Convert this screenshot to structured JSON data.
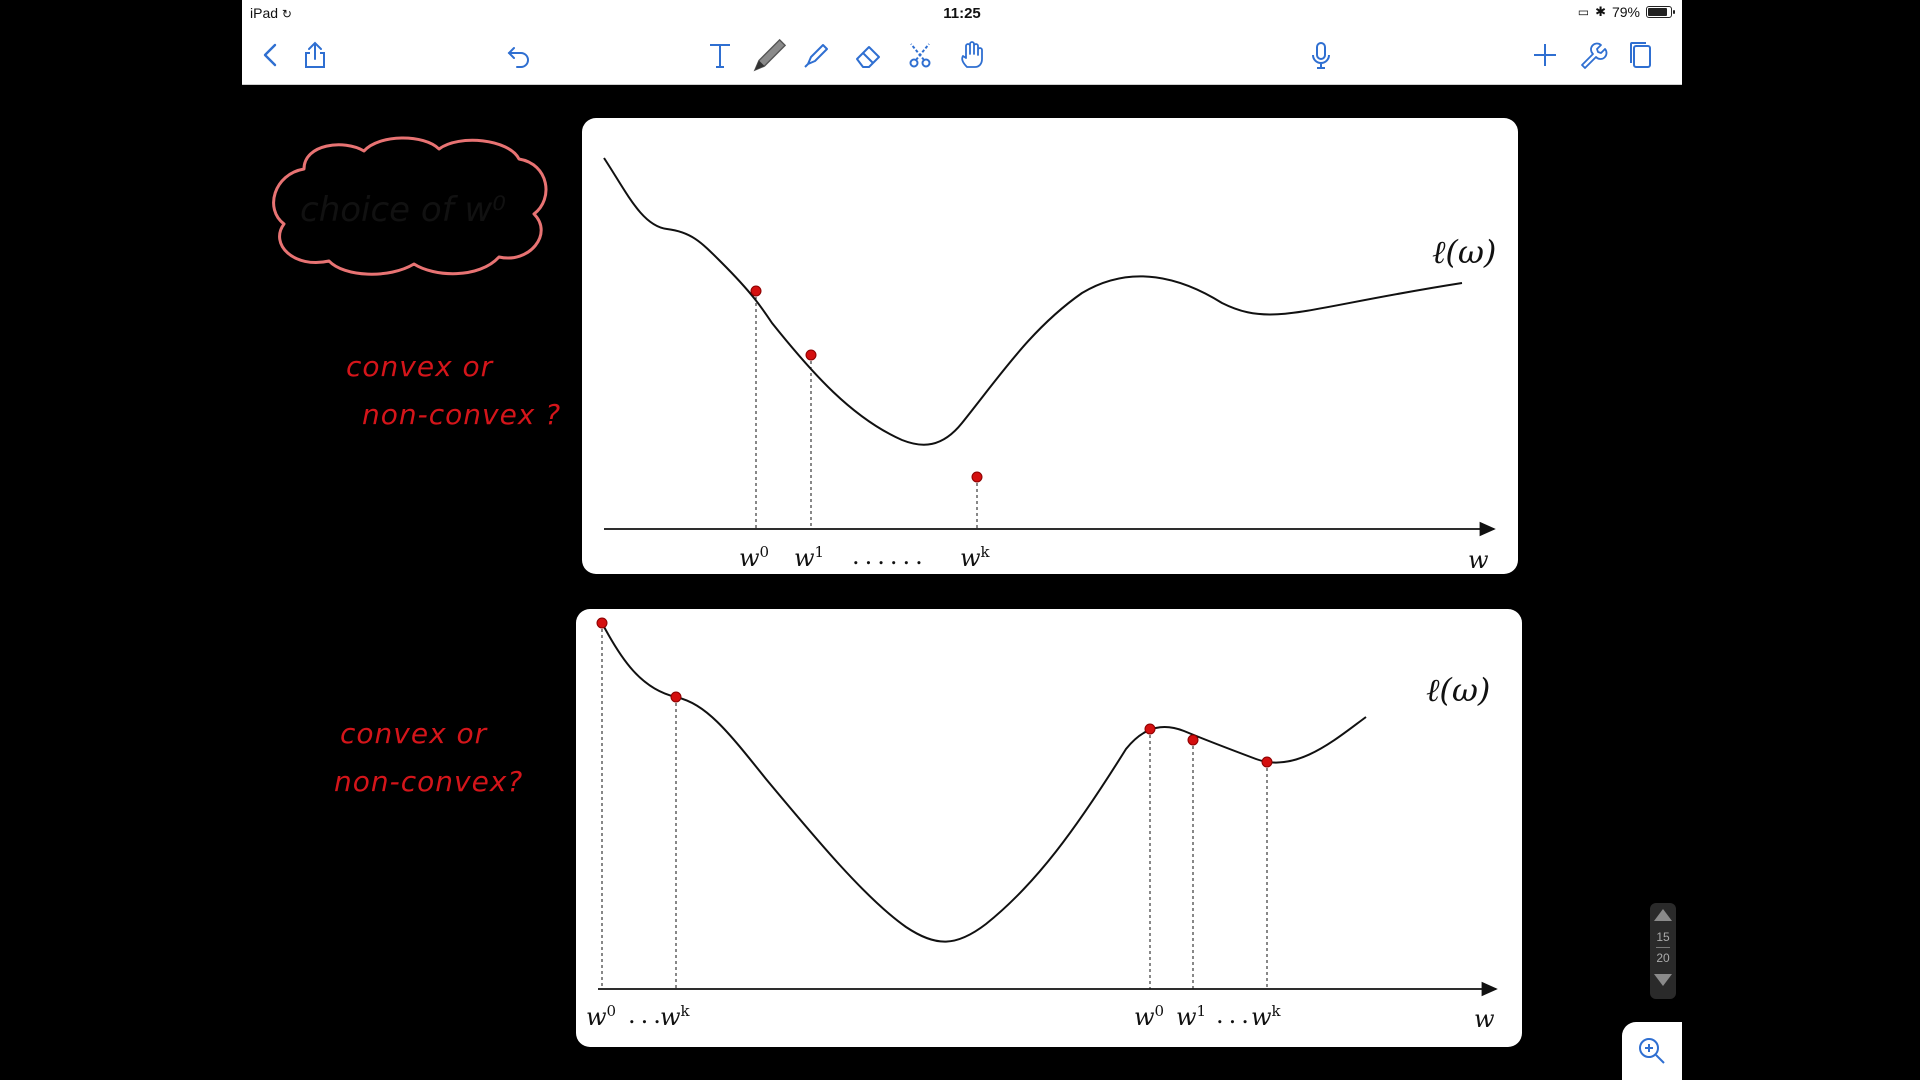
{
  "status_bar": {
    "device": "iPad",
    "time": "11:25",
    "battery": "79%",
    "battery_level": 0.79
  },
  "toolbar": {
    "left": [
      "back-icon",
      "share-icon",
      "undo-icon"
    ],
    "tools": [
      "text-tool-icon",
      "pen-tool-icon",
      "highlighter-tool-icon",
      "eraser-tool-icon",
      "scissors-tool-icon",
      "hand-pointer-icon"
    ],
    "right": [
      "microphone-icon",
      "add-icon",
      "wrench-icon",
      "pages-icon"
    ]
  },
  "notes": {
    "cloud_text": "choice of w⁰",
    "note1_line1": "convex or",
    "note1_line2": "non-convex ?",
    "note2_line1": "convex or",
    "note2_line2": "non-convex?",
    "ink_color": "#d4151a"
  },
  "graph1": {
    "curve_label": "ℓ(ω)",
    "axis_label": "w",
    "labels": [
      {
        "base": "w",
        "sup": "0"
      },
      {
        "base": "w",
        "sup": "1"
      },
      {
        "base": "w",
        "sup": "k"
      }
    ],
    "dots": "......"
  },
  "graph2": {
    "curve_label": "ℓ(ω)",
    "axis_label": "w",
    "labels_left": [
      {
        "base": "w",
        "sup": "0"
      },
      {
        "base": "w",
        "sup": "k"
      }
    ],
    "labels_right": [
      {
        "base": "w",
        "sup": "0"
      },
      {
        "base": "w",
        "sup": "1"
      },
      {
        "base": "w",
        "sup": "k"
      }
    ],
    "dots": "..."
  },
  "page_control": {
    "current": "15",
    "total": "20"
  },
  "point_color": "#d40f0f"
}
